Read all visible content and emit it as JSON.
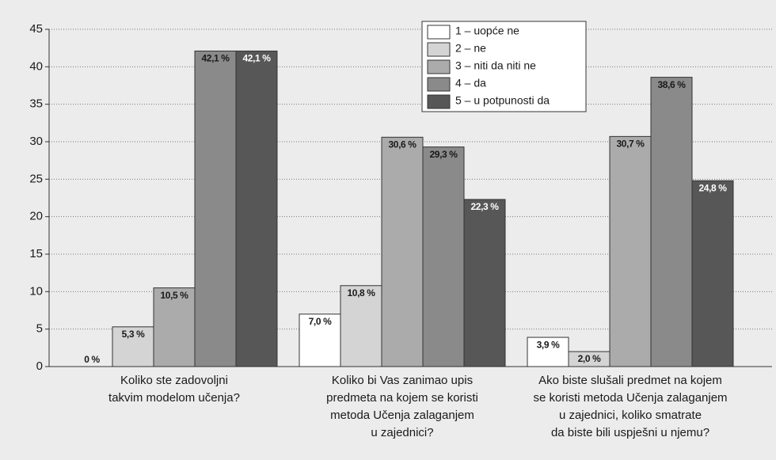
{
  "chart_data": {
    "type": "bar",
    "categories": [
      [
        "Koliko ste zadovoljni",
        "takvim modelom učenja?"
      ],
      [
        "Koliko bi Vas zanimao upis",
        "predmeta na kojem se koristi",
        "metoda Učenja zalaganjem",
        "u zajednici?"
      ],
      [
        "Ako biste slušali predmet na kojem",
        "se koristi metoda Učenja zalaganjem",
        "u zajednici, koliko smatrate",
        "da biste bili uspješni u njemu?"
      ]
    ],
    "series": [
      {
        "name": "1 – uopće ne",
        "color": "#ffffff",
        "label_color": "#1a1a1a",
        "values": [
          0,
          7.0,
          3.9
        ],
        "value_labels": [
          "0 %",
          "7,0 %",
          "3,9 %"
        ]
      },
      {
        "name": "2 – ne",
        "color": "#d4d4d4",
        "label_color": "#1a1a1a",
        "values": [
          5.3,
          10.8,
          2.0
        ],
        "value_labels": [
          "5,3 %",
          "10,8 %",
          "2,0 %"
        ]
      },
      {
        "name": "3 – niti da niti ne",
        "color": "#ababab",
        "label_color": "#1a1a1a",
        "values": [
          10.5,
          30.6,
          30.7
        ],
        "value_labels": [
          "10,5 %",
          "30,6 %",
          "30,7 %"
        ]
      },
      {
        "name": "4 – da",
        "color": "#8a8a8a",
        "label_color": "#1a1a1a",
        "values": [
          42.1,
          29.3,
          38.6
        ],
        "value_labels": [
          "42,1 %",
          "29,3 %",
          "38,6 %"
        ]
      },
      {
        "name": "5 – u potpunosti da",
        "color": "#575757",
        "label_color": "#ffffff",
        "values": [
          42.1,
          22.3,
          24.8
        ],
        "value_labels": [
          "42,1 %",
          "22,3 %",
          "24,8 %"
        ]
      }
    ],
    "ylim": [
      0,
      45
    ],
    "yticks": [
      0,
      5,
      10,
      15,
      20,
      25,
      30,
      35,
      40,
      45
    ],
    "grid": true
  }
}
